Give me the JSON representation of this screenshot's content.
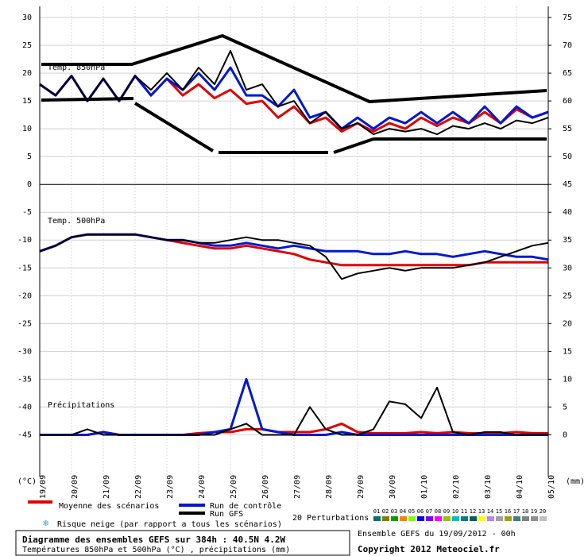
{
  "chart_data": {
    "type": "line",
    "x": [
      0,
      12,
      24,
      36,
      48,
      60,
      72,
      84,
      96,
      108,
      120,
      132,
      144,
      156,
      168,
      180,
      192,
      204,
      216,
      228,
      240,
      252,
      264,
      276,
      288,
      300,
      312,
      324,
      336,
      348,
      360,
      372,
      384
    ],
    "xlim": [
      0,
      384
    ],
    "xticks": [
      {
        "value": 0,
        "label": "19/09"
      },
      {
        "value": 24,
        "label": "20/09"
      },
      {
        "value": 48,
        "label": "21/09"
      },
      {
        "value": 72,
        "label": "22/09"
      },
      {
        "value": 96,
        "label": "23/09"
      },
      {
        "value": 120,
        "label": "24/09"
      },
      {
        "value": 144,
        "label": "25/09"
      },
      {
        "value": 168,
        "label": "26/09"
      },
      {
        "value": 192,
        "label": "27/09"
      },
      {
        "value": 216,
        "label": "28/09"
      },
      {
        "value": 240,
        "label": "29/09"
      },
      {
        "value": 264,
        "label": "30/09"
      },
      {
        "value": 288,
        "label": "01/10"
      },
      {
        "value": 312,
        "label": "02/10"
      },
      {
        "value": 336,
        "label": "03/10"
      },
      {
        "value": 360,
        "label": "04/10"
      },
      {
        "value": 384,
        "label": "05/10"
      }
    ],
    "ylim": [
      -52.5,
      32
    ],
    "yticks": [
      30,
      25,
      20,
      15,
      10,
      5,
      0,
      -5,
      -10,
      -15,
      -20,
      -25,
      -30,
      -35,
      -40,
      -45
    ],
    "y2lim": [
      -7.5,
      77
    ],
    "y2ticks": [
      75,
      70,
      65,
      60,
      55,
      50,
      45,
      40,
      35,
      30,
      25,
      20,
      15,
      10,
      5,
      0
    ],
    "ylabel": "(°C)",
    "y2label": "(mm)",
    "grid": true,
    "panels": [
      {
        "label": "Temp. 850hPa",
        "series": [
          {
            "name": "Moyenne des scénarios",
            "color": "#e00000",
            "values": [
              18,
              16,
              19.5,
              15,
              19,
              15,
              19.5,
              16,
              19,
              16,
              18,
              15.5,
              17,
              14.5,
              15,
              12,
              14,
              11,
              12,
              9.5,
              11,
              9.5,
              11,
              10,
              12,
              10.5,
              12,
              11,
              13,
              11,
              13.5,
              12,
              13
            ]
          },
          {
            "name": "Run de contrôle",
            "color": "#0018d0",
            "values": [
              18,
              16,
              19.5,
              15,
              19,
              15,
              19.5,
              16,
              19,
              17,
              20,
              17,
              21,
              16,
              16,
              14,
              17,
              12,
              13,
              10,
              12,
              10,
              12,
              11,
              13,
              11,
              13,
              11,
              14,
              11,
              14,
              12,
              13
            ]
          },
          {
            "name": "Run GFS",
            "color": "#000000",
            "values": [
              18,
              16,
              19.5,
              15,
              19,
              15,
              19.5,
              17,
              20,
              17,
              21,
              18,
              24,
              17,
              18,
              14,
              15,
              11,
              13,
              10,
              11,
              9,
              10,
              9.5,
              10,
              9,
              10.5,
              10,
              11,
              10,
              11.5,
              11,
              12
            ]
          }
        ]
      },
      {
        "label": "Temp. 500hPa",
        "series": [
          {
            "color": "#e00000",
            "values": [
              -12,
              -11,
              -9.5,
              -9,
              -9,
              -9,
              -9,
              -9.5,
              -10,
              -10.5,
              -11,
              -11.5,
              -11.5,
              -11,
              -11.5,
              -12,
              -12.5,
              -13.5,
              -14,
              -14.5,
              -14.5,
              -14.5,
              -14.5,
              -14.5,
              -14.5,
              -14.5,
              -14.5,
              -14.5,
              -14,
              -14,
              -14,
              -14,
              -14
            ]
          },
          {
            "color": "#0018d0",
            "values": [
              -12,
              -11,
              -9.5,
              -9,
              -9,
              -9,
              -9,
              -9.5,
              -10,
              -10,
              -10.5,
              -11,
              -11,
              -10.5,
              -11,
              -11.5,
              -11,
              -11.5,
              -12,
              -12,
              -12,
              -12.5,
              -12.5,
              -12,
              -12.5,
              -12.5,
              -13,
              -12.5,
              -12,
              -12.5,
              -13,
              -13,
              -13.5
            ]
          },
          {
            "color": "#000000",
            "values": [
              -12,
              -11,
              -9.5,
              -9,
              -9,
              -9,
              -9,
              -9.5,
              -10,
              -10,
              -10.5,
              -10.5,
              -10,
              -9.5,
              -10,
              -10,
              -10.5,
              -11,
              -13,
              -17,
              -16,
              -15.5,
              -15,
              -15.5,
              -15,
              -15,
              -15,
              -14.5,
              -14,
              -13,
              -12,
              -11,
              -10.5
            ]
          }
        ]
      },
      {
        "label": "Précipitations",
        "axis": "y2",
        "series": [
          {
            "color": "#e00000",
            "values": [
              0,
              0,
              0,
              0,
              0.5,
              0,
              0,
              0,
              0,
              0,
              0.3,
              0.5,
              0.5,
              1,
              1,
              0.5,
              0.5,
              0.5,
              1,
              2,
              0.5,
              0.3,
              0.3,
              0.3,
              0.5,
              0.3,
              0.5,
              0.3,
              0.3,
              0.3,
              0.5,
              0.3,
              0.3
            ]
          },
          {
            "color": "#0018d0",
            "values": [
              0,
              0,
              0,
              0,
              0.5,
              0,
              0,
              0,
              0,
              0,
              0,
              0.5,
              1,
              10,
              1,
              0.5,
              0,
              0,
              0,
              0.5,
              0,
              0,
              0,
              0,
              0,
              0,
              0,
              0,
              0,
              0,
              0,
              0,
              0
            ]
          },
          {
            "color": "#000000",
            "values": [
              0,
              0,
              0,
              1,
              0,
              0,
              0,
              0,
              0,
              0,
              0,
              0,
              1,
              2,
              0,
              0,
              0,
              5,
              1,
              0,
              0,
              1,
              6,
              5.5,
              3,
              8.5,
              0.5,
              0,
              0.5,
              0.5,
              0,
              0,
              0
            ]
          }
        ]
      }
    ],
    "snow_legend": "Risque neige (par rapport a tous les scénarios)",
    "perturbations": {
      "label": "20 Perturbations",
      "names": [
        "01",
        "02",
        "03",
        "04",
        "05",
        "06",
        "07",
        "08",
        "09",
        "10",
        "11",
        "12",
        "13",
        "14",
        "15",
        "16",
        "17",
        "18",
        "19",
        "20"
      ],
      "colors": [
        "#007070",
        "#808000",
        "#00a000",
        "#ff8000",
        "#80ff00",
        "#0000ff",
        "#8000ff",
        "#ff00ff",
        "#a0c000",
        "#00c0c0",
        "#008080",
        "#006060",
        "#ffff00",
        "#c080ff",
        "#a0a0a0",
        "#a0a000",
        "#408080",
        "#808080",
        "#909090",
        "#c0c0c0"
      ]
    },
    "title": "Diagramme des ensembles GEFS sur 384h : 40.5N 4.2W",
    "subtitle": "Températures 850hPa et 500hPa (°C) , précipitations (mm)",
    "run_info": "Ensemble GEFS du 19/09/2012 - 00h",
    "copyright": "Copyright 2012 Meteociel.fr"
  }
}
